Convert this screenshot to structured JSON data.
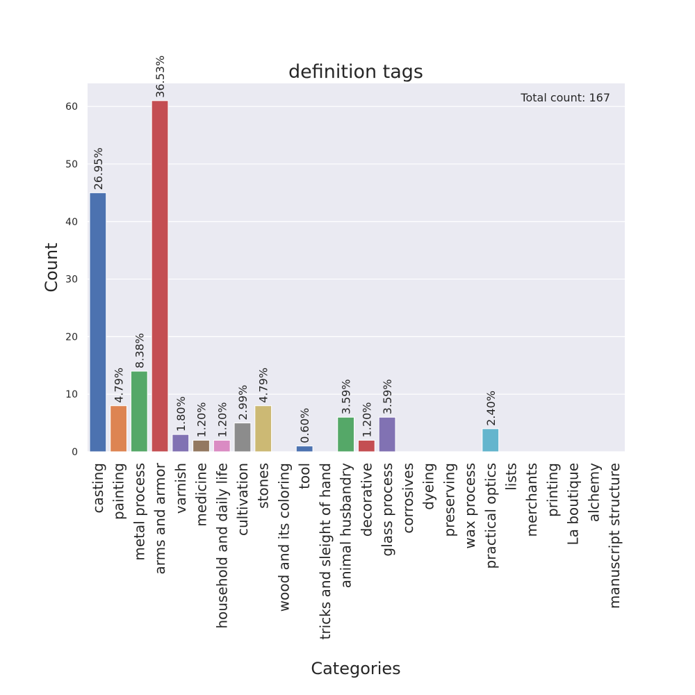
{
  "chart_data": {
    "type": "bar",
    "title": "definition tags",
    "xlabel": "Categories",
    "ylabel": "Count",
    "ylim": [
      0,
      64
    ],
    "yticks": [
      0,
      10,
      20,
      30,
      40,
      50,
      60
    ],
    "grid": true,
    "annotation": "Total count: 167",
    "annotation_position": "top-right",
    "categories": [
      "casting",
      "painting",
      "metal process",
      "arms and armor",
      "varnish",
      "medicine",
      "household and daily life",
      "cultivation",
      "stones",
      "wood and its coloring",
      "tool",
      "tricks and sleight of hand",
      "animal husbandry",
      "decorative",
      "glass process",
      "corrosives",
      "dyeing",
      "preserving",
      "wax process",
      "practical optics",
      "lists",
      "merchants",
      "printing",
      "La boutique",
      "alchemy",
      "manuscript structure"
    ],
    "values": [
      45,
      8,
      14,
      61,
      3,
      2,
      2,
      5,
      8,
      0,
      1,
      0,
      6,
      2,
      6,
      0,
      0,
      0,
      0,
      4,
      0,
      0,
      0,
      0,
      0,
      0
    ],
    "bar_labels": [
      "26.95%",
      "4.79%",
      "8.38%",
      "36.53%",
      "1.80%",
      "1.20%",
      "1.20%",
      "2.99%",
      "4.79%",
      "",
      "0.60%",
      "",
      "3.59%",
      "1.20%",
      "3.59%",
      "",
      "",
      "",
      "",
      "2.40%",
      "",
      "",
      "",
      "",
      "",
      ""
    ],
    "colors": [
      "#4c72b0",
      "#dd8452",
      "#55a868",
      "#c44e52",
      "#8172b3",
      "#937860",
      "#da8bc3",
      "#8c8c8c",
      "#ccb974",
      "#64b5cd"
    ]
  }
}
